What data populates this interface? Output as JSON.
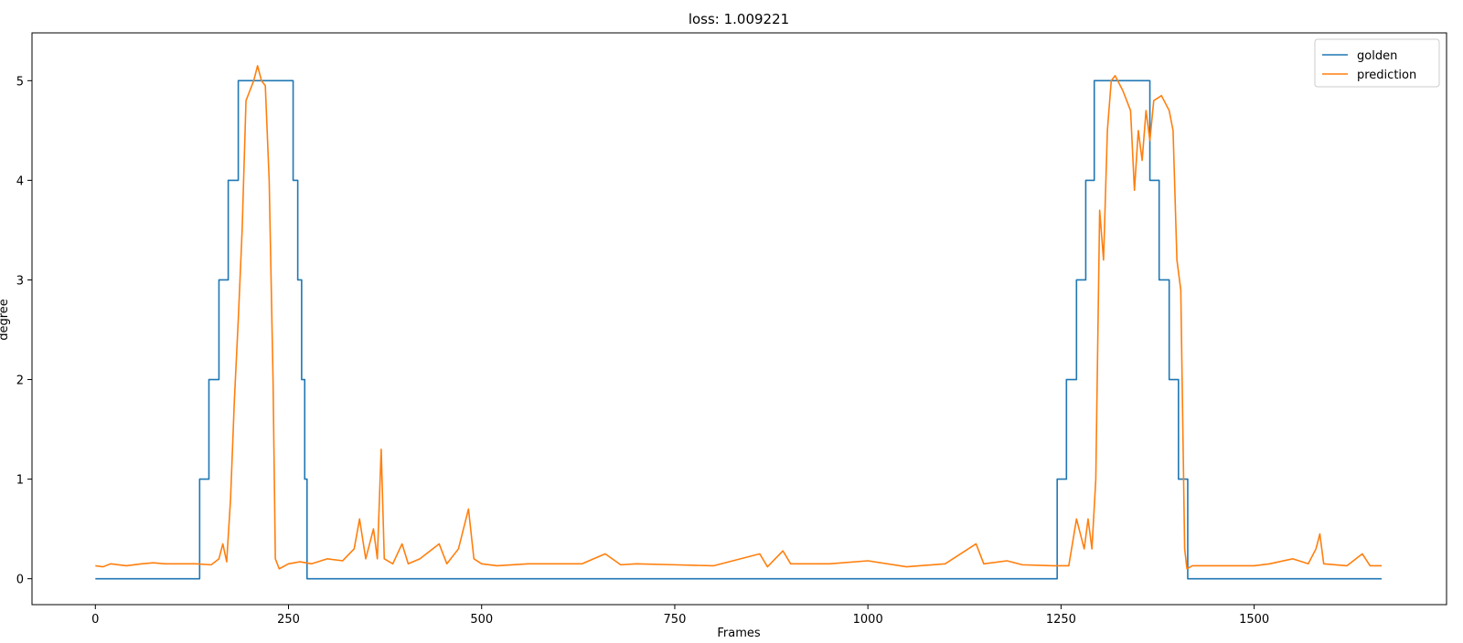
{
  "chart_data": {
    "type": "line",
    "title": "loss: 1.009221",
    "x_label": "Frames",
    "y_label": "degree",
    "xlim": [
      -82,
      1749
    ],
    "ylim": [
      -0.26,
      5.48
    ],
    "xticks": [
      0,
      250,
      500,
      750,
      1000,
      1250,
      1500
    ],
    "yticks": [
      0,
      1,
      2,
      3,
      4,
      5
    ],
    "legend": "upper right",
    "grid": false,
    "series": [
      {
        "name": "golden",
        "color": "#1f77b4",
        "x": [
          0,
          135,
          135,
          147,
          147,
          160,
          160,
          172,
          172,
          185,
          185,
          256,
          256,
          262,
          262,
          267,
          267,
          271,
          271,
          274,
          274,
          1245,
          1245,
          1257,
          1257,
          1270,
          1270,
          1282,
          1282,
          1293,
          1293,
          1365,
          1365,
          1377,
          1377,
          1390,
          1390,
          1402,
          1402,
          1414,
          1414,
          1665
        ],
        "values": [
          0,
          0,
          1,
          1,
          2,
          2,
          3,
          3,
          4,
          4,
          5,
          5,
          4,
          4,
          3,
          3,
          2,
          2,
          1,
          1,
          0,
          0,
          1,
          1,
          2,
          2,
          3,
          3,
          4,
          4,
          5,
          5,
          4,
          4,
          3,
          3,
          2,
          2,
          1,
          1,
          0,
          0
        ]
      },
      {
        "name": "prediction",
        "color": "#ff7f0e",
        "x": [
          0,
          10,
          20,
          40,
          60,
          75,
          90,
          110,
          130,
          150,
          160,
          165,
          170,
          175,
          180,
          185,
          190,
          195,
          200,
          205,
          210,
          215,
          220,
          225,
          230,
          233,
          238,
          250,
          265,
          280,
          300,
          320,
          335,
          342,
          350,
          360,
          365,
          370,
          374,
          385,
          397,
          405,
          420,
          445,
          455,
          470,
          483,
          490,
          500,
          520,
          560,
          600,
          630,
          660,
          680,
          700,
          750,
          800,
          860,
          870,
          890,
          900,
          950,
          1000,
          1050,
          1100,
          1140,
          1150,
          1180,
          1200,
          1240,
          1260,
          1270,
          1280,
          1285,
          1290,
          1295,
          1300,
          1305,
          1310,
          1315,
          1320,
          1330,
          1340,
          1345,
          1350,
          1355,
          1360,
          1365,
          1370,
          1380,
          1390,
          1395,
          1400,
          1405,
          1410,
          1413,
          1420,
          1450,
          1500,
          1520,
          1550,
          1570,
          1580,
          1585,
          1590,
          1620,
          1640,
          1650,
          1665
        ],
        "values": [
          0.13,
          0.12,
          0.15,
          0.13,
          0.15,
          0.16,
          0.15,
          0.15,
          0.15,
          0.14,
          0.2,
          0.35,
          0.17,
          0.8,
          1.8,
          2.6,
          3.5,
          4.8,
          4.9,
          5.0,
          5.15,
          5.0,
          4.95,
          4.0,
          2.0,
          0.2,
          0.1,
          0.15,
          0.17,
          0.15,
          0.2,
          0.18,
          0.3,
          0.6,
          0.2,
          0.5,
          0.2,
          1.3,
          0.2,
          0.15,
          0.35,
          0.15,
          0.2,
          0.35,
          0.15,
          0.3,
          0.7,
          0.2,
          0.15,
          0.13,
          0.15,
          0.15,
          0.15,
          0.25,
          0.14,
          0.15,
          0.14,
          0.13,
          0.25,
          0.12,
          0.28,
          0.15,
          0.15,
          0.18,
          0.12,
          0.15,
          0.35,
          0.15,
          0.18,
          0.14,
          0.13,
          0.13,
          0.6,
          0.3,
          0.6,
          0.3,
          1.0,
          3.7,
          3.2,
          4.5,
          5.0,
          5.05,
          4.9,
          4.7,
          3.9,
          4.5,
          4.2,
          4.7,
          4.4,
          4.8,
          4.85,
          4.7,
          4.5,
          3.2,
          2.9,
          0.3,
          0.1,
          0.13,
          0.13,
          0.13,
          0.15,
          0.2,
          0.15,
          0.3,
          0.45,
          0.15,
          0.13,
          0.25,
          0.13,
          0.13
        ]
      }
    ]
  }
}
